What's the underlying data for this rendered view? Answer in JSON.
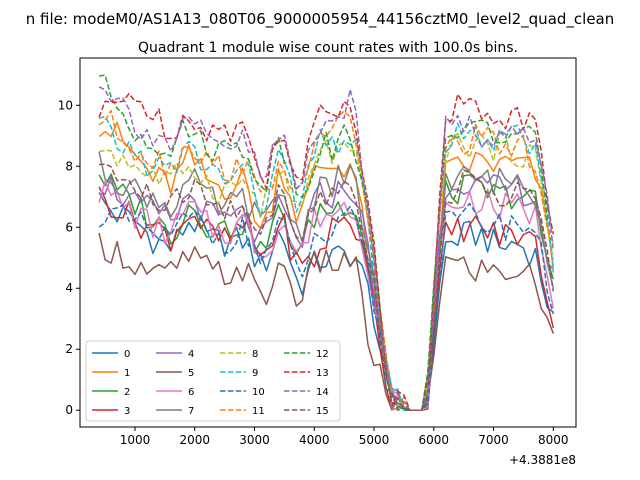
{
  "chart_data": {
    "type": "line",
    "suptitle": "n file: modeM0/AS1A13_080T06_9000005954_44156cztM0_level2_quad_clean",
    "title": "Quadrant 1 module wise count rates with 100.0s bins.",
    "xlabel": "",
    "ylabel": "",
    "offset_text": "+4.3881e8",
    "xlim": [
      80,
      8380
    ],
    "ylim": [
      -0.55,
      11.55
    ],
    "x_ticks": [
      1000,
      2000,
      3000,
      4000,
      5000,
      6000,
      7000,
      8000
    ],
    "x_tick_labels": [
      "1000",
      "2000",
      "3000",
      "4000",
      "5000",
      "6000",
      "7000",
      "8000"
    ],
    "y_ticks": [
      0,
      2,
      4,
      6,
      8,
      10
    ],
    "y_tick_labels": [
      "0",
      "2",
      "4",
      "6",
      "8",
      "10"
    ],
    "grid": false,
    "legend_position": "lower-left",
    "legend_columns": 4,
    "x_sample_start": 400,
    "x_sample_step": 100,
    "x_sample_end": 8000,
    "series": [
      {
        "name": "0",
        "color": "#1f77b4",
        "dash": "solid",
        "base": [
          6.9,
          6.4,
          6.2,
          5.6,
          5.3,
          6.3,
          5.6,
          5.5,
          5.6,
          4.6,
          6.0,
          4.0,
          4.9,
          5.0,
          5.2,
          3.6,
          0.2,
          0.0,
          0.0,
          5.4,
          5.7,
          5.8,
          5.3,
          5.5,
          5.1,
          2.9
        ]
      },
      {
        "name": "1",
        "color": "#ff7f0e",
        "dash": "solid",
        "base": [
          9.4,
          9.0,
          8.3,
          7.6,
          7.4,
          8.3,
          7.5,
          7.3,
          7.6,
          5.7,
          8.1,
          6.2,
          8.0,
          8.0,
          8.1,
          4.2,
          0.4,
          0.0,
          0.0,
          7.7,
          8.0,
          8.2,
          8.0,
          8.1,
          7.8,
          5.0
        ]
      },
      {
        "name": "2",
        "color": "#2ca02c",
        "dash": "solid",
        "base": [
          7.8,
          7.1,
          6.8,
          6.2,
          5.8,
          6.8,
          6.1,
          5.9,
          6.2,
          5.1,
          6.6,
          5.0,
          6.6,
          6.6,
          7.0,
          4.5,
          0.4,
          0.0,
          0.0,
          7.0,
          7.3,
          7.2,
          7.0,
          7.1,
          6.8,
          4.0
        ]
      },
      {
        "name": "3",
        "color": "#d62728",
        "dash": "solid",
        "base": [
          7.0,
          6.7,
          6.2,
          6.0,
          5.7,
          6.6,
          5.8,
          5.5,
          6.1,
          4.9,
          6.3,
          4.6,
          5.0,
          6.2,
          6.3,
          3.9,
          0.3,
          0.0,
          0.0,
          5.7,
          6.0,
          6.0,
          5.7,
          5.8,
          5.5,
          3.0
        ]
      },
      {
        "name": "4",
        "color": "#9467bd",
        "dash": "solid",
        "base": [
          7.6,
          7.2,
          6.7,
          6.5,
          6.2,
          7.1,
          6.4,
          6.2,
          6.4,
          5.4,
          6.8,
          5.3,
          7.0,
          7.1,
          7.4,
          4.7,
          0.4,
          0.0,
          0.0,
          7.4,
          7.6,
          7.3,
          7.2,
          7.3,
          7.0,
          4.2
        ]
      },
      {
        "name": "5",
        "color": "#8c564b",
        "dash": "solid",
        "base": [
          5.5,
          5.2,
          4.8,
          4.4,
          4.5,
          5.1,
          4.6,
          4.4,
          4.7,
          3.4,
          4.9,
          3.6,
          4.9,
          4.8,
          5.0,
          1.8,
          0.2,
          0.0,
          0.0,
          4.9,
          4.7,
          4.6,
          4.5,
          4.6,
          4.3,
          2.2
        ]
      },
      {
        "name": "6",
        "color": "#e377c2",
        "dash": "solid",
        "base": [
          7.2,
          6.9,
          6.4,
          6.0,
          5.8,
          6.7,
          6.0,
          5.8,
          6.2,
          5.0,
          6.3,
          5.0,
          6.4,
          6.5,
          6.8,
          4.4,
          0.4,
          0.0,
          0.0,
          6.6,
          6.9,
          6.9,
          6.6,
          6.7,
          6.4,
          3.8
        ]
      },
      {
        "name": "7",
        "color": "#7f7f7f",
        "dash": "solid",
        "base": [
          8.0,
          7.6,
          7.2,
          7.0,
          6.7,
          7.6,
          6.9,
          6.6,
          7.0,
          5.9,
          7.4,
          5.6,
          7.4,
          7.5,
          7.7,
          4.8,
          0.4,
          0.0,
          0.0,
          7.4,
          7.6,
          7.6,
          7.5,
          7.6,
          7.2,
          4.3
        ]
      },
      {
        "name": "8",
        "color": "#bcbd22",
        "dash": "dashed",
        "base": [
          8.7,
          8.4,
          8.0,
          7.7,
          7.4,
          8.2,
          7.4,
          7.2,
          7.5,
          6.6,
          8.0,
          6.1,
          8.6,
          8.4,
          8.6,
          5.3,
          0.5,
          0.0,
          0.0,
          8.5,
          8.8,
          8.7,
          8.6,
          8.5,
          8.3,
          5.0
        ]
      },
      {
        "name": "9",
        "color": "#17becf",
        "dash": "dashed",
        "base": [
          9.3,
          8.8,
          8.4,
          8.0,
          7.8,
          8.6,
          7.9,
          7.6,
          7.9,
          6.6,
          8.4,
          6.4,
          8.7,
          8.8,
          9.0,
          5.4,
          0.5,
          0.0,
          0.0,
          8.8,
          9.1,
          8.9,
          8.8,
          8.9,
          8.6,
          5.0
        ]
      },
      {
        "name": "10",
        "color": "#1f77b4",
        "dash": "dashed",
        "base": [
          6.5,
          6.3,
          6.1,
          5.8,
          5.6,
          6.4,
          5.8,
          5.6,
          5.9,
          4.9,
          6.1,
          4.4,
          5.6,
          5.8,
          6.3,
          4.0,
          0.3,
          0.0,
          0.0,
          6.0,
          6.3,
          6.3,
          6.0,
          6.2,
          5.9,
          3.3
        ]
      },
      {
        "name": "11",
        "color": "#ff7f0e",
        "dash": "dashed",
        "base": [
          9.6,
          9.2,
          8.6,
          8.3,
          8.0,
          8.9,
          8.1,
          7.9,
          8.2,
          6.7,
          8.5,
          6.5,
          9.2,
          9.3,
          9.6,
          5.3,
          0.5,
          0.0,
          0.0,
          8.5,
          8.8,
          8.9,
          8.6,
          8.7,
          8.3,
          5.0
        ]
      },
      {
        "name": "12",
        "color": "#2ca02c",
        "dash": "dashed",
        "base": [
          10.8,
          10.0,
          9.2,
          8.9,
          8.6,
          9.3,
          8.7,
          8.5,
          8.7,
          7.3,
          9.0,
          6.9,
          8.6,
          8.7,
          9.1,
          5.6,
          0.5,
          0.0,
          0.0,
          9.0,
          9.3,
          9.2,
          9.0,
          9.1,
          8.7,
          5.5
        ]
      },
      {
        "name": "13",
        "color": "#d62728",
        "dash": "dashed",
        "base": [
          9.6,
          10.0,
          10.5,
          9.5,
          9.3,
          9.6,
          9.3,
          9.1,
          9.4,
          7.2,
          9.6,
          6.9,
          9.9,
          10.0,
          10.2,
          5.9,
          0.5,
          0.0,
          0.0,
          9.8,
          10.0,
          9.8,
          9.6,
          9.7,
          9.3,
          5.9
        ]
      },
      {
        "name": "14",
        "color": "#9467bd",
        "dash": "dashed",
        "base": [
          11.0,
          10.2,
          9.5,
          9.0,
          8.7,
          9.4,
          8.8,
          8.6,
          8.9,
          7.4,
          9.2,
          7.0,
          9.5,
          9.7,
          10.1,
          5.5,
          0.5,
          0.0,
          0.0,
          9.2,
          9.4,
          9.1,
          9.0,
          9.1,
          8.8,
          5.6
        ]
      },
      {
        "name": "15",
        "color": "#8c564b",
        "dash": "dashed",
        "base": [
          8.2,
          7.7,
          7.2,
          6.9,
          6.6,
          7.4,
          6.7,
          6.5,
          6.8,
          5.7,
          7.2,
          5.4,
          7.0,
          7.2,
          7.5,
          4.7,
          0.4,
          0.0,
          0.0,
          7.1,
          7.4,
          7.3,
          7.1,
          7.2,
          6.9,
          4.1
        ]
      }
    ]
  }
}
